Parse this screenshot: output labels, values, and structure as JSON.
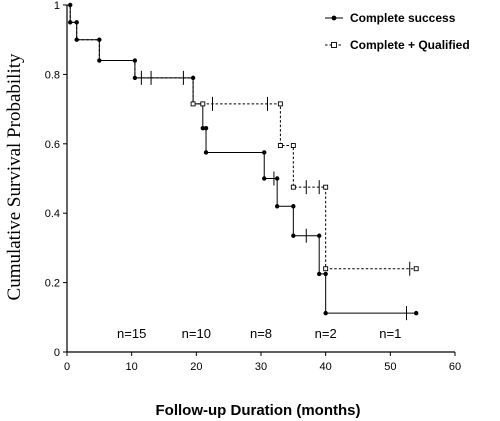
{
  "chart_data": {
    "type": "line",
    "step": true,
    "title": "",
    "xlabel": "Follow-up Duration (months)",
    "ylabel": "Cumulative Survival Probability",
    "xlim": [
      0,
      60
    ],
    "ylim": [
      0,
      1
    ],
    "xticks": [
      0,
      10,
      20,
      30,
      40,
      50,
      60
    ],
    "yticks": [
      0,
      0.2,
      0.4,
      0.6,
      0.8,
      1
    ],
    "ytick_labels": [
      "0",
      "0.2",
      "0.4",
      "0.6",
      "0.8",
      "1"
    ],
    "grid": false,
    "legend_position": "top-right",
    "series": [
      {
        "name": "Complete success",
        "line": "solid",
        "marker": "filled-circle",
        "points": [
          [
            0,
            1
          ],
          [
            0.5,
            1
          ],
          [
            0.5,
            0.95
          ],
          [
            1.5,
            0.95
          ],
          [
            1.5,
            0.9
          ],
          [
            5,
            0.9
          ],
          [
            5,
            0.84
          ],
          [
            10.5,
            0.84
          ],
          [
            10.5,
            0.79
          ],
          [
            19.5,
            0.79
          ],
          [
            19.5,
            0.715
          ],
          [
            21,
            0.715
          ],
          [
            21,
            0.645
          ],
          [
            21.5,
            0.645
          ],
          [
            21.5,
            0.575
          ],
          [
            30.5,
            0.575
          ],
          [
            30.5,
            0.5
          ],
          [
            32.5,
            0.5
          ],
          [
            32.5,
            0.42
          ],
          [
            35,
            0.42
          ],
          [
            35,
            0.335
          ],
          [
            39,
            0.335
          ],
          [
            39,
            0.225
          ],
          [
            40,
            0.225
          ],
          [
            40,
            0.112
          ],
          [
            54,
            0.112
          ]
        ],
        "markers": [
          [
            0.5,
            1
          ],
          [
            0.5,
            0.95
          ],
          [
            1.5,
            0.95
          ],
          [
            1.5,
            0.9
          ],
          [
            5,
            0.9
          ],
          [
            5,
            0.84
          ],
          [
            10.5,
            0.84
          ],
          [
            10.5,
            0.79
          ],
          [
            19.5,
            0.79
          ],
          [
            19.5,
            0.715
          ],
          [
            21,
            0.715
          ],
          [
            21,
            0.645
          ],
          [
            21.5,
            0.645
          ],
          [
            21.5,
            0.575
          ],
          [
            30.5,
            0.575
          ],
          [
            30.5,
            0.5
          ],
          [
            32.5,
            0.5
          ],
          [
            32.5,
            0.42
          ],
          [
            35,
            0.42
          ],
          [
            35,
            0.335
          ],
          [
            39,
            0.335
          ],
          [
            39,
            0.225
          ],
          [
            40,
            0.225
          ],
          [
            40,
            0.112
          ],
          [
            54,
            0.112
          ]
        ],
        "censored": [
          [
            11.5,
            0.79
          ],
          [
            13,
            0.79
          ],
          [
            18,
            0.79
          ],
          [
            32,
            0.5
          ],
          [
            37,
            0.335
          ],
          [
            52.5,
            0.112
          ]
        ]
      },
      {
        "name": "Complete + Qualified",
        "line": "dashed",
        "marker": "open-square",
        "points": [
          [
            0,
            1
          ],
          [
            0.5,
            1
          ],
          [
            0.5,
            0.95
          ],
          [
            1.5,
            0.95
          ],
          [
            1.5,
            0.9
          ],
          [
            5,
            0.9
          ],
          [
            5,
            0.84
          ],
          [
            10.5,
            0.84
          ],
          [
            10.5,
            0.79
          ],
          [
            19.5,
            0.79
          ],
          [
            19.5,
            0.715
          ],
          [
            33,
            0.715
          ],
          [
            33,
            0.595
          ],
          [
            35,
            0.595
          ],
          [
            35,
            0.475
          ],
          [
            40,
            0.475
          ],
          [
            40,
            0.24
          ],
          [
            54,
            0.24
          ]
        ],
        "markers": [
          [
            19.5,
            0.715
          ],
          [
            21,
            0.715
          ],
          [
            33,
            0.715
          ],
          [
            33,
            0.595
          ],
          [
            35,
            0.595
          ],
          [
            35,
            0.475
          ],
          [
            40,
            0.475
          ],
          [
            40,
            0.24
          ],
          [
            54,
            0.24
          ]
        ],
        "censored": [
          [
            22.5,
            0.715
          ],
          [
            31,
            0.715
          ],
          [
            37,
            0.475
          ],
          [
            39,
            0.475
          ],
          [
            53,
            0.24
          ]
        ]
      }
    ],
    "annotations": [
      {
        "x": 10,
        "y": 0.04,
        "text": "n=15"
      },
      {
        "x": 20,
        "y": 0.04,
        "text": "n=10"
      },
      {
        "x": 30,
        "y": 0.04,
        "text": "n=8"
      },
      {
        "x": 40,
        "y": 0.04,
        "text": "n=2"
      },
      {
        "x": 50,
        "y": 0.04,
        "text": "n=1"
      }
    ]
  }
}
